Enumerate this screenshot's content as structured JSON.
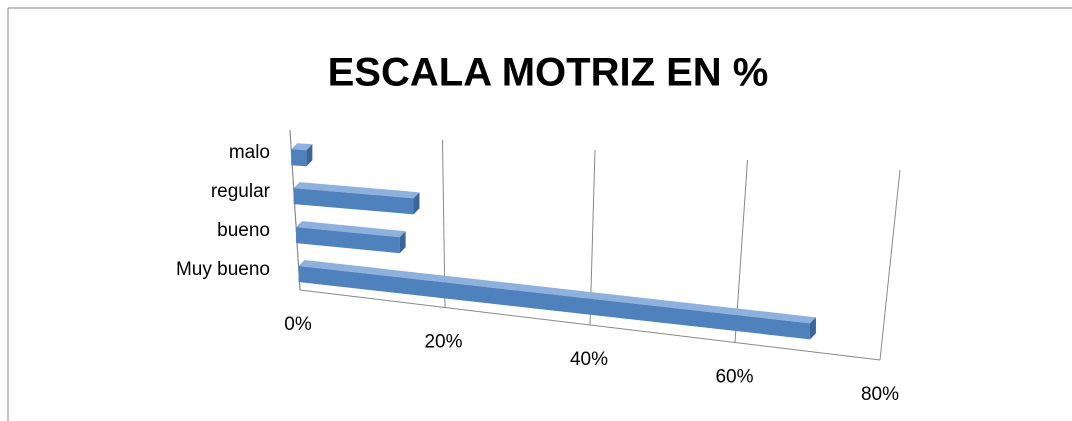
{
  "chart_data": {
    "type": "bar3d",
    "title": "ESCALA MOTRIZ EN %",
    "categories": [
      "malo",
      "regular",
      "bueno",
      "Muy bueno"
    ],
    "values": [
      2,
      16,
      14,
      70
    ],
    "color": "#4f81bd",
    "xlim": [
      0,
      80
    ],
    "xticks": [
      {
        "value": 0,
        "label": "0%"
      },
      {
        "value": 20,
        "label": "20%"
      },
      {
        "value": 40,
        "label": "40%"
      },
      {
        "value": 60,
        "label": "60%"
      },
      {
        "value": 80,
        "label": "80%"
      }
    ],
    "grid": true
  }
}
